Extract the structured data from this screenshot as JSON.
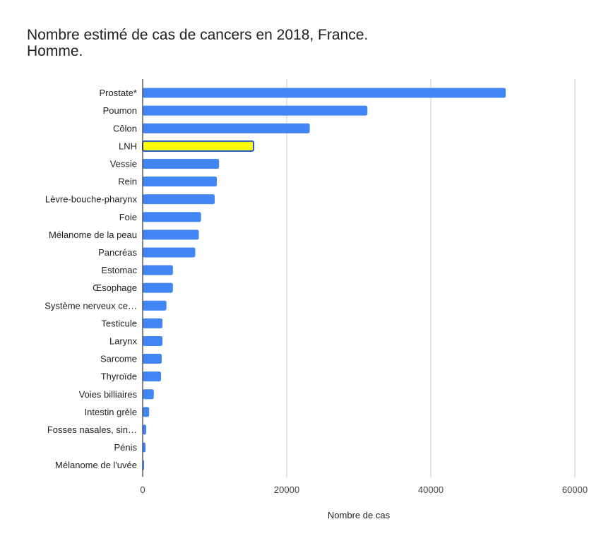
{
  "chart_data": {
    "type": "bar",
    "orientation": "horizontal",
    "title": "Nombre estimé de cas de cancers en 2018, France.\nHomme.",
    "xlabel": "Nombre de cas",
    "ylabel": "",
    "xlim": [
      0,
      60000
    ],
    "xticks": [
      "0",
      "20000",
      "40000",
      "60000"
    ],
    "grid": true,
    "legend": "none",
    "colors": {
      "bar": "#4285F4",
      "highlight": "#FFFF00",
      "highlight_border": "#1A56C8"
    },
    "highlight_category": "LNH",
    "categories": [
      "Prostate*",
      "Poumon",
      "Côlon",
      "LNH",
      "Vessie",
      "Rein",
      "Lèvre-bouche-pharynx",
      "Foie",
      "Mélanome de la peau",
      "Pancréas",
      "Estomac",
      "Œsophage",
      "Système nerveux ce…",
      "Testicule",
      "Larynx",
      "Sarcome",
      "Thyroïde",
      "Voies billiaires",
      "Intestin grèle",
      "Fosses nasales, sin…",
      "Pénis",
      "Mélanome de l'uvée"
    ],
    "values": [
      50400,
      31200,
      23200,
      15400,
      10600,
      10300,
      10000,
      8100,
      7800,
      7300,
      4200,
      4200,
      3300,
      2750,
      2750,
      2650,
      2550,
      1550,
      900,
      500,
      400,
      200
    ]
  }
}
